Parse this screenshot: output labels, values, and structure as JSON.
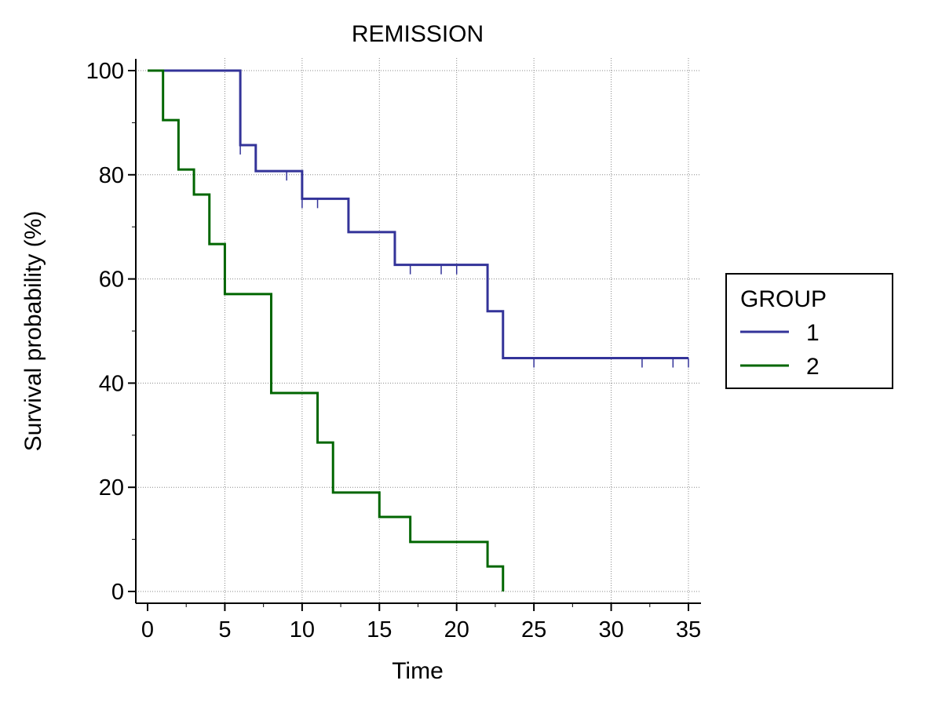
{
  "chart_data": {
    "type": "line",
    "subtype": "kaplan-meier step survival curve",
    "title": "REMISSION",
    "xlabel": "Time",
    "ylabel": "Survival probability (%)",
    "xlim": [
      0,
      35
    ],
    "ylim": [
      0,
      100
    ],
    "x_ticks": [
      0,
      5,
      10,
      15,
      20,
      25,
      30,
      35
    ],
    "y_ticks": [
      0,
      20,
      40,
      60,
      80,
      100
    ],
    "grid": true,
    "legend": {
      "title": "GROUP",
      "position": "right",
      "entries": [
        "1",
        "2"
      ]
    },
    "series": [
      {
        "name": "1",
        "color": "#333399",
        "steps": [
          {
            "x": 0,
            "y": 100
          },
          {
            "x": 6,
            "y": 85.7
          },
          {
            "x": 7,
            "y": 80.7
          },
          {
            "x": 10,
            "y": 75.4
          },
          {
            "x": 13,
            "y": 69.0
          },
          {
            "x": 16,
            "y": 62.7
          },
          {
            "x": 22,
            "y": 53.8
          },
          {
            "x": 23,
            "y": 44.8
          }
        ],
        "end_x": 35,
        "censored": [
          6,
          9,
          10,
          11,
          17,
          19,
          20,
          25,
          32,
          34,
          35
        ]
      },
      {
        "name": "2",
        "color": "#006600",
        "steps": [
          {
            "x": 0,
            "y": 100
          },
          {
            "x": 1,
            "y": 90.5
          },
          {
            "x": 2,
            "y": 81.0
          },
          {
            "x": 3,
            "y": 76.2
          },
          {
            "x": 4,
            "y": 66.7
          },
          {
            "x": 5,
            "y": 57.1
          },
          {
            "x": 8,
            "y": 38.1
          },
          {
            "x": 11,
            "y": 28.6
          },
          {
            "x": 12,
            "y": 19.0
          },
          {
            "x": 15,
            "y": 14.3
          },
          {
            "x": 17,
            "y": 9.5
          },
          {
            "x": 22,
            "y": 4.8
          },
          {
            "x": 23,
            "y": 0
          }
        ],
        "end_x": 23,
        "censored": []
      }
    ]
  }
}
